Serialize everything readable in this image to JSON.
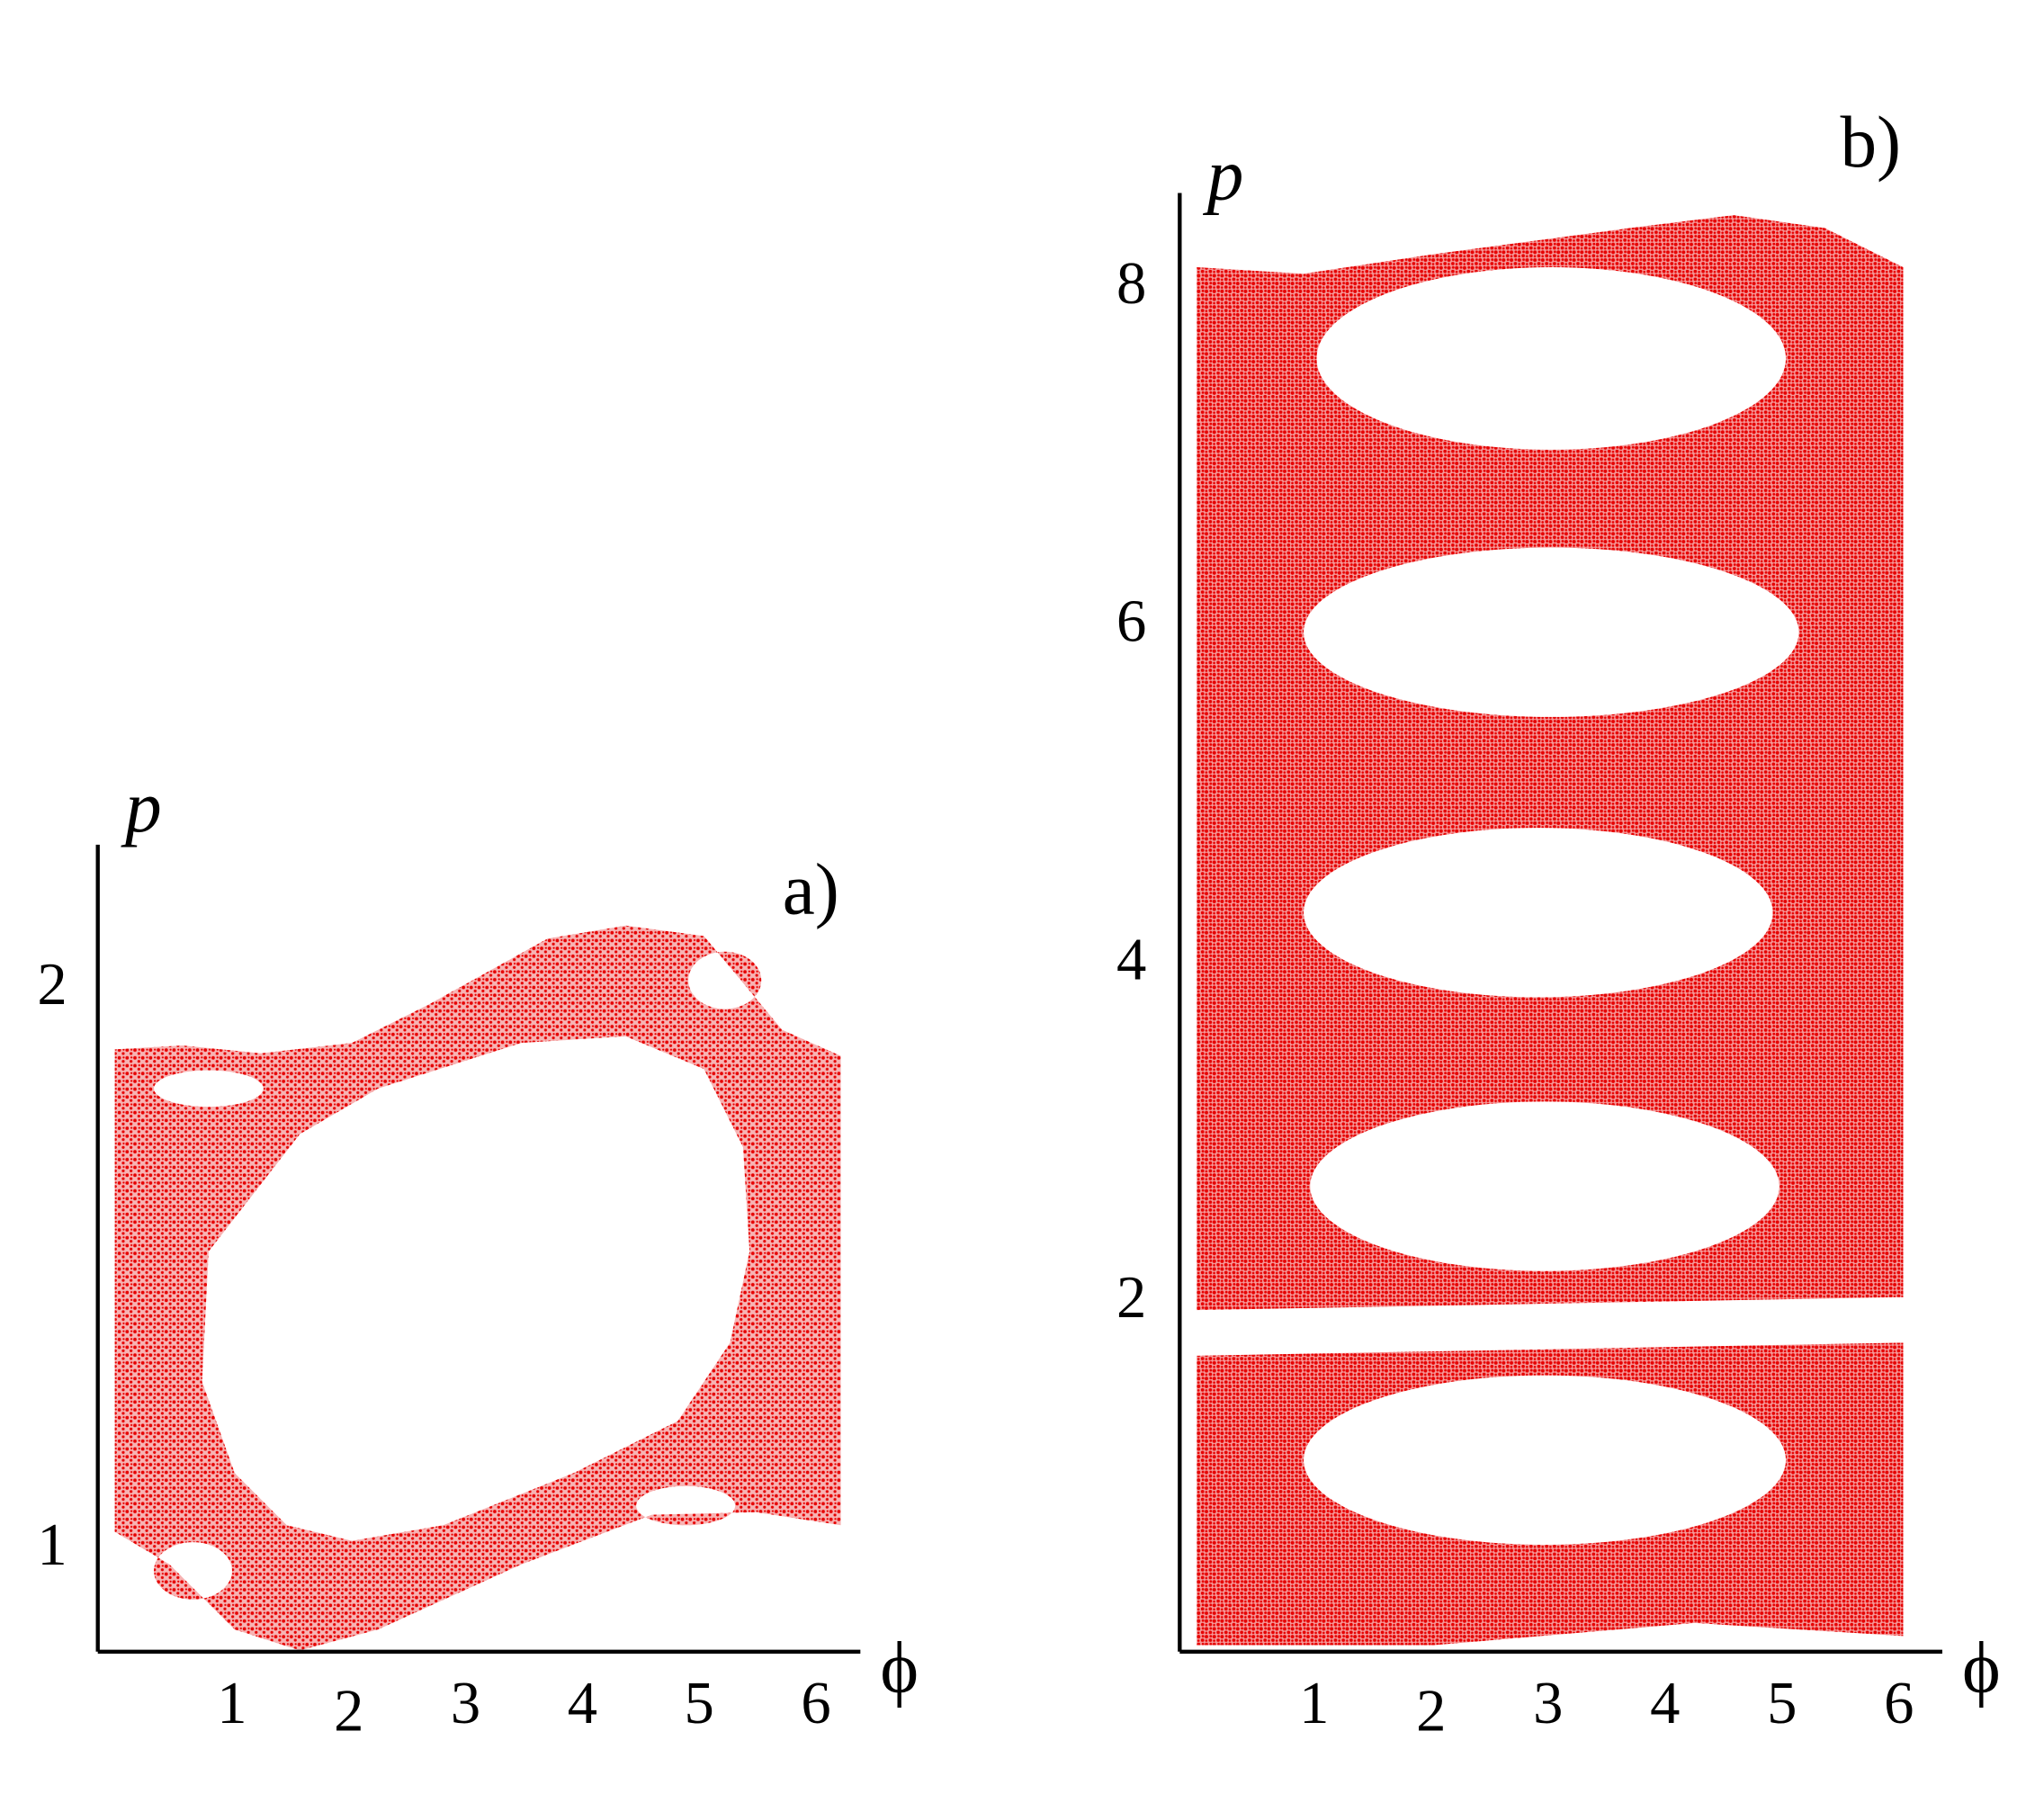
{
  "chart_data": [
    {
      "type": "scatter",
      "panel_label": "a)",
      "x_label": "ϕ",
      "y_label": "p",
      "xlim": [
        -0.15,
        6.38
      ],
      "ylim": [
        0.82,
        2.26
      ],
      "xticks": [
        1,
        2,
        3,
        4,
        5,
        6
      ],
      "yticks": [
        1,
        2
      ],
      "color": "#e60000"
    },
    {
      "type": "scatter",
      "panel_label": "b)",
      "x_label": "ϕ",
      "y_label": "p",
      "xlim": [
        -0.15,
        6.37
      ],
      "ylim": [
        -0.06,
        8.57
      ],
      "xticks": [
        1,
        2,
        3,
        4,
        5,
        6
      ],
      "yticks": [
        2,
        4,
        6,
        8
      ],
      "color": "#e60000"
    }
  ]
}
